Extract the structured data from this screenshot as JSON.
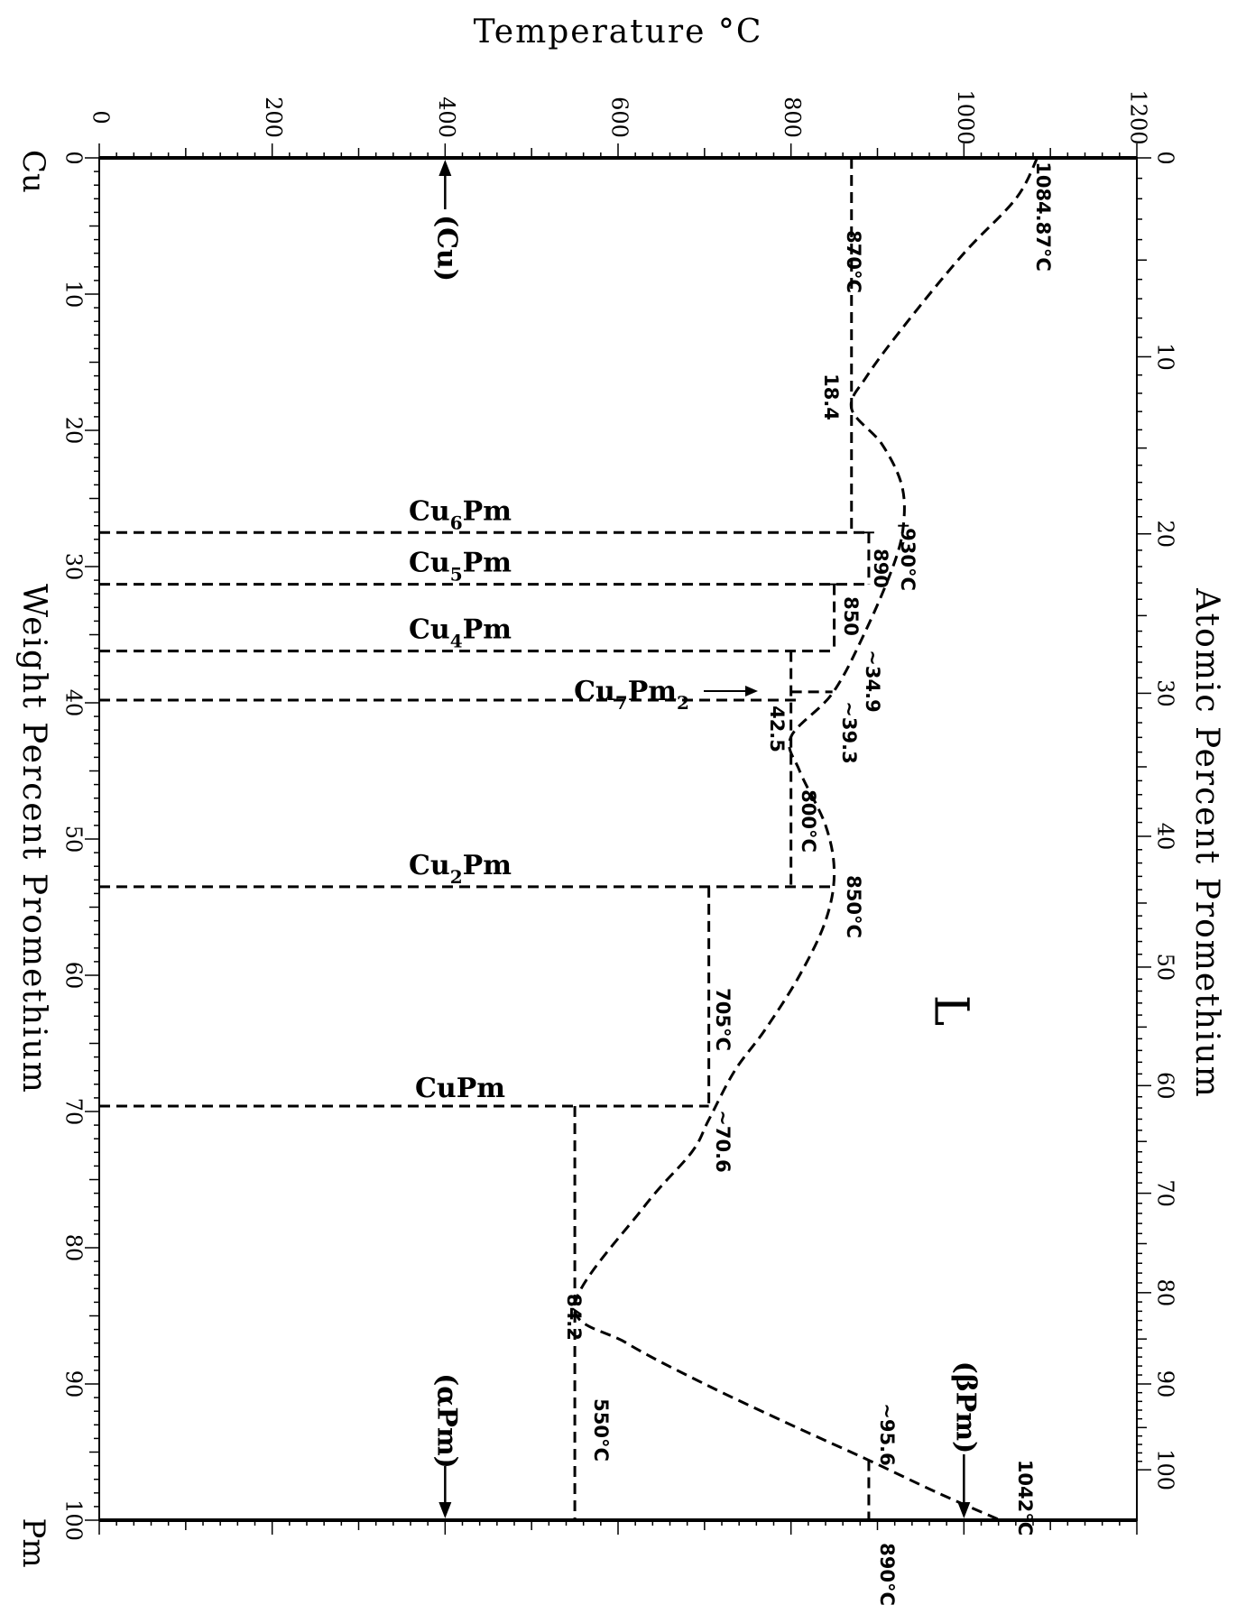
{
  "chart_data": {
    "type": "phase-diagram",
    "title": "",
    "temperature_axis": {
      "label": "Temperature °C",
      "range": [
        0,
        1200
      ],
      "ticks": [
        0,
        200,
        400,
        600,
        800,
        1000,
        1200
      ]
    },
    "weight_axis": {
      "label": "Weight Percent Promethium",
      "range": [
        0,
        100
      ],
      "ticks": [
        0,
        10,
        20,
        30,
        40,
        50,
        60,
        70,
        80,
        90,
        100
      ]
    },
    "atomic_axis": {
      "label": "Atomic Percent Promethium",
      "range": [
        0,
        100
      ],
      "ticks": [
        0,
        10,
        20,
        30,
        40,
        50,
        60,
        70,
        80,
        90,
        100
      ]
    },
    "end_labels": {
      "left": "Cu",
      "right": "Pm"
    },
    "region_labels": {
      "liquid": "L",
      "cu_solid": "(Cu)",
      "alpha_pm": "(αPm)",
      "beta_pm": "(βPm)"
    },
    "liquidus": [
      [
        0,
        1084.87
      ],
      [
        3,
        1060
      ],
      [
        7,
        1000
      ],
      [
        12,
        935
      ],
      [
        16,
        888
      ],
      [
        18.4,
        870
      ],
      [
        21,
        905
      ],
      [
        24,
        928
      ],
      [
        27,
        930
      ],
      [
        30,
        918
      ],
      [
        34.9,
        885
      ],
      [
        39.3,
        848
      ],
      [
        42.5,
        800
      ],
      [
        45,
        810
      ],
      [
        49,
        840
      ],
      [
        52.5,
        850
      ],
      [
        56,
        840
      ],
      [
        60,
        810
      ],
      [
        64,
        770
      ],
      [
        67,
        735
      ],
      [
        70.6,
        705
      ],
      [
        73,
        685
      ],
      [
        77,
        630
      ],
      [
        84.2,
        550
      ],
      [
        87,
        610
      ],
      [
        90,
        700
      ],
      [
        93,
        800
      ],
      [
        95.6,
        890
      ],
      [
        98,
        970
      ],
      [
        100,
        1042
      ]
    ],
    "phases": [
      {
        "name": "Cu6Pm",
        "wt": 27.5,
        "top": 890
      },
      {
        "name": "Cu5Pm",
        "wt": 31.3,
        "top": 890
      },
      {
        "name": "Cu4Pm",
        "wt": 36.2,
        "top": 850
      },
      {
        "name": "Cu7Pm2",
        "wt": 39.8,
        "top": 810
      },
      {
        "name": "Cu2Pm",
        "wt": 53.5,
        "top": 850
      },
      {
        "name": "CuPm",
        "wt": 69.6,
        "top": 705
      }
    ],
    "invariant_lines": [
      {
        "temp": 870,
        "from": 0,
        "to": 27.5,
        "label": "870°C"
      },
      {
        "temp": 890,
        "from": 27.5,
        "to": 31.3,
        "label": "890"
      },
      {
        "temp": 850,
        "from": 31.3,
        "to": 36.2,
        "label": "850"
      },
      {
        "temp": 800,
        "from": 36.2,
        "to": 53.5,
        "label": "800°C"
      },
      {
        "temp": 705,
        "from": 53.5,
        "to": 69.6,
        "label": "705°C"
      },
      {
        "temp": 550,
        "from": 69.6,
        "to": 100,
        "label": "550°C"
      }
    ],
    "points": [
      {
        "label": "1084.87°C",
        "wt": 0,
        "temp": 1084.87
      },
      {
        "label": "18.4",
        "wt": 18.4,
        "temp": 870
      },
      {
        "label": "930°C",
        "wt": 27,
        "temp": 930
      },
      {
        "label": "~34.9",
        "wt": 34.9,
        "temp": 885
      },
      {
        "label": "~39.3",
        "wt": 39.3,
        "temp": 848
      },
      {
        "label": "42.5",
        "wt": 42.5,
        "temp": 800
      },
      {
        "label": "850°C",
        "wt": 52.5,
        "temp": 850
      },
      {
        "label": "~70.6",
        "wt": 70.6,
        "temp": 705
      },
      {
        "label": "84.2",
        "wt": 84.2,
        "temp": 550
      },
      {
        "label": "~95.6",
        "wt": 95.6,
        "temp": 890
      },
      {
        "label": "1042°C",
        "wt": 100,
        "temp": 1042
      },
      {
        "label": "890°C",
        "wt": 100,
        "temp": 890
      }
    ],
    "pm_allotrope_temp": 890,
    "region_markers": {
      "cu_temp": 400,
      "alpha_pm_temp": 400,
      "beta_pm_temp": 1000
    }
  }
}
